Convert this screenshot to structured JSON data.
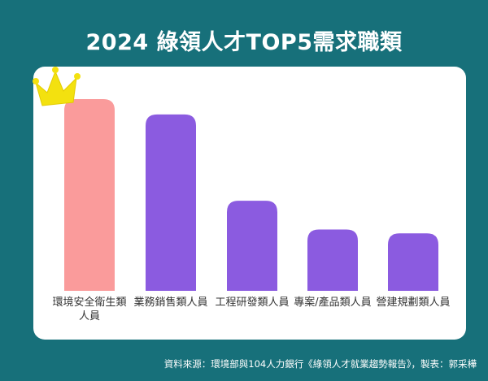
{
  "chart_data": {
    "type": "bar",
    "title": "2024 綠領人才TOP5需求職類",
    "categories": [
      "環境安全衛生類\n人員",
      "業務銷售類人員",
      "工程研發類人員",
      "專案/產品類人員",
      "營建規劃類人員"
    ],
    "values": [
      100,
      92,
      47,
      32,
      30
    ],
    "ylim": [
      0,
      100
    ],
    "grid": false,
    "colors": {
      "highlight": "#fa9b9b",
      "bar": "#8b5be0",
      "crown": "#f3e10f"
    }
  },
  "footer": {
    "source": "資料來源：環境部與104人力銀行《綠領人才就業趨勢報告》，製表：郭采樺"
  }
}
